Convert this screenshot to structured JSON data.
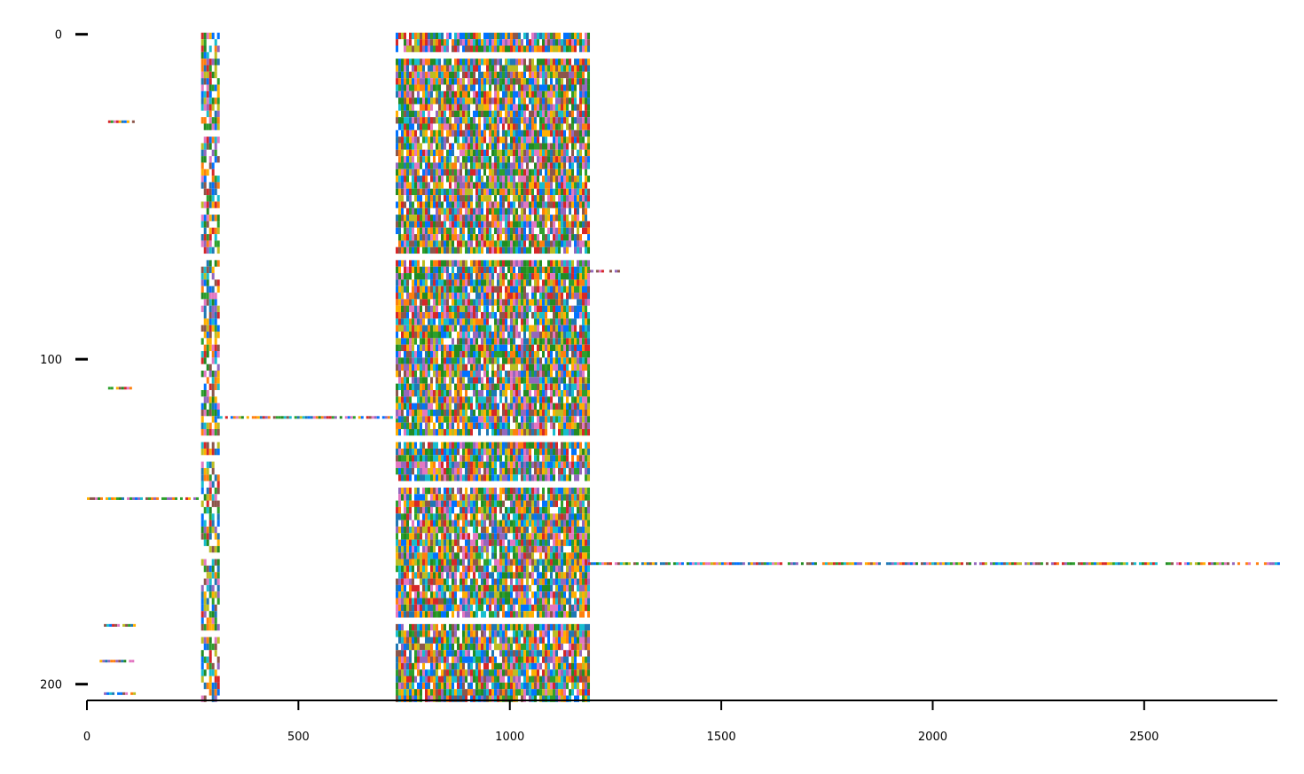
{
  "chart_data": {
    "type": "heatmap",
    "title": "",
    "xlabel": "",
    "ylabel": "",
    "xlim": [
      0,
      2815
    ],
    "ylim": [
      205,
      -1
    ],
    "x_ticks": [
      0,
      500,
      1000,
      1500,
      2000,
      2500
    ],
    "x_tick_labels": [
      "0",
      "500",
      "1000",
      "1500",
      "2000",
      "2500"
    ],
    "y_ticks": [
      0,
      100,
      200
    ],
    "y_tick_labels": [
      "0",
      "100",
      "200"
    ],
    "y_axis_inverted": true,
    "grid": false,
    "legend": "none",
    "palette": [
      "#1f77b4",
      "#ff7f0e",
      "#2ca02c",
      "#d62728",
      "#9467bd",
      "#17becf",
      "#bcbd22",
      "#8c564b",
      "#e377c2",
      "#0072ff",
      "#ffb000",
      "#228b22"
    ],
    "blocks": [
      {
        "name": "block-a",
        "x_range": [
          270,
          308
        ],
        "y_range": [
          0,
          205
        ],
        "density": 0.72
      },
      {
        "name": "block-b",
        "x_range": [
          730,
          1185
        ],
        "y_range": [
          0,
          205
        ],
        "density": 0.9
      }
    ],
    "rows": [
      {
        "row": 27,
        "x_range": [
          50,
          110
        ]
      },
      {
        "row": 73,
        "x_range": [
          1185,
          1255
        ]
      },
      {
        "row": 109,
        "x_range": [
          50,
          110
        ]
      },
      {
        "row": 118,
        "x_range": [
          308,
          730
        ]
      },
      {
        "row": 143,
        "x_range": [
          0,
          270
        ]
      },
      {
        "row": 163,
        "x_range": [
          1185,
          2815
        ]
      },
      {
        "row": 182,
        "x_range": [
          40,
          110
        ]
      },
      {
        "row": 193,
        "x_range": [
          30,
          110
        ]
      },
      {
        "row": 203,
        "x_range": [
          40,
          110
        ]
      }
    ],
    "gaps": [
      {
        "x_range": [
          270,
          308
        ],
        "rows": [
          31,
          68,
          124,
          130,
          160,
          185
        ]
      },
      {
        "x_range": [
          730,
          1185
        ],
        "rows": [
          6,
          68,
          125,
          138,
          181
        ]
      }
    ]
  }
}
